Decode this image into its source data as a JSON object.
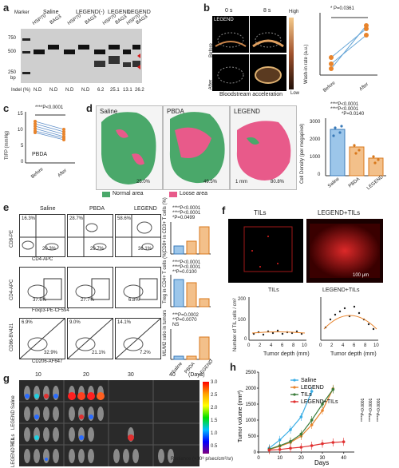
{
  "panels": {
    "a": "a",
    "b": "b",
    "c": "c",
    "d": "d",
    "e": "e",
    "f": "f",
    "g": "g",
    "h": "h"
  },
  "panel_a": {
    "groups": [
      "Saline",
      "LEGEND(-)",
      "LEGEND",
      "LEGEND"
    ],
    "marker_label": "Marker",
    "lane_labels": [
      "HSP70",
      "BAG3",
      "HSP70",
      "BAG3",
      "HSP70",
      "BAG3",
      "HSP70",
      "BAG3"
    ],
    "size_labels": [
      "750",
      "500",
      "250",
      "bp"
    ],
    "indel_label": "Indel (%)",
    "indel_values": [
      "N.D",
      "N.D",
      "N.D",
      "N.D",
      "6.2",
      "25.1",
      "13.1",
      "26.2"
    ]
  },
  "panel_b": {
    "time_0": "0 s",
    "time_8": "8 s",
    "legend_tag": "LEGEND",
    "row_before": "Before",
    "row_after": "After",
    "caption": "Bloodstream acceleration",
    "scale_high": "High",
    "scale_low": "Low",
    "ylabel": "Wash-in rate (a.u.)",
    "pval": "* P=0.0361",
    "xlabels": [
      "Before",
      "After"
    ]
  },
  "panel_c": {
    "ylabel": "TIFP (mmHg)",
    "pval": "****P<0.0001",
    "tag": "PBDA",
    "xlabels": [
      "Before",
      "After"
    ],
    "yticks": [
      "15",
      "10",
      "5",
      "0"
    ]
  },
  "panel_d": {
    "titles": [
      "Saline",
      "PBDA",
      "LEGEND"
    ],
    "percents": [
      "25.0%",
      "49.5%",
      "80.8%"
    ],
    "scalebar": "1 mm",
    "legend_normal": "Normal area",
    "legend_loose": "Loose area",
    "ylabel": "Cell Density (per megapixel)",
    "pvals": [
      "****P<0.0001",
      "****P<0.0001",
      "*P=0.0140"
    ],
    "xlabels": [
      "Saline",
      "PBDA",
      "LEGEND"
    ],
    "yticks": [
      "3000",
      "2000",
      "1000",
      "0"
    ]
  },
  "panel_e": {
    "cols": [
      "Saline",
      "PBDA",
      "LEGEND"
    ],
    "row1_tl": [
      "16.3%",
      "28.7%",
      "58.6%"
    ],
    "row1_br": [
      "20.3%",
      "29.7%",
      "36.1%"
    ],
    "row2_pct": [
      "37.6%",
      "27.7%",
      "6.8%"
    ],
    "row3_tl": [
      "6.9%",
      "9.0%",
      "14.1%"
    ],
    "row3_br": [
      "32.9%",
      "21.1%",
      "7.2%"
    ],
    "row1_axes": [
      "CD8-PE",
      "CD4-APC"
    ],
    "row2_axes": [
      "CD4-APC",
      "Foxp3-PE-CF594"
    ],
    "row3_axes": [
      "CD86-BV421",
      "CD206-AF647"
    ],
    "bar_ylabels": [
      "CD8+ in CD3+ T cells (%)",
      "Treg in CD4+ T cells (%)",
      "M1/M2 ratio in tumors"
    ],
    "row1_pvals": [
      "****P<0.0001",
      "****P<0.0001",
      "*P=0.0499"
    ],
    "row2_pvals": [
      "****P<0.0001",
      "****P<0.0001",
      "**P=0.0100"
    ],
    "row3_pvals": [
      "***P=0.0002",
      "**P=0.0070",
      "NS"
    ],
    "xlabels": [
      "Saline",
      "PBDA",
      "LEGEND"
    ]
  },
  "panel_f": {
    "titles": [
      "TILs",
      "LEGEND+TILs"
    ],
    "scalebar": "100 μm",
    "plot_titles": [
      "TILs",
      "LEGEND+TILs"
    ],
    "ylabel": "Number of TIL cells / cm²",
    "xlabel": "Tumor depth (mm)",
    "xticks": [
      "0",
      "2",
      "4",
      "6",
      "8",
      "10"
    ],
    "yticks": [
      "200",
      "100",
      "0"
    ]
  },
  "panel_g": {
    "days": [
      "10",
      "20",
      "30",
      "40"
    ],
    "days_label": "(Days)",
    "rows": [
      "Saline",
      "LEGEND",
      "TILs",
      "LEGEND +TILs"
    ],
    "colorbar_ticks": [
      "3.0",
      "2.5",
      "2.0",
      "1.5",
      "1.0",
      "0.5"
    ],
    "colorbar_label": "Radiance (×10⁸ p/sec/cm²/sr)"
  },
  "chart_data": {
    "type": "line",
    "title": "",
    "xlabel": "Days",
    "ylabel": "Tumor volume (mm³)",
    "xlim": [
      0,
      45
    ],
    "ylim": [
      0,
      2500
    ],
    "xticks": [
      0,
      10,
      20,
      30,
      40
    ],
    "yticks": [
      0,
      500,
      1000,
      1500,
      2000,
      2500
    ],
    "series": [
      {
        "name": "Saline",
        "color": "#3aaee6",
        "x": [
          5,
          10,
          15,
          20,
          25
        ],
        "y": [
          120,
          380,
          700,
          1100,
          1900
        ]
      },
      {
        "name": "LEGEND",
        "color": "#e8842c",
        "x": [
          5,
          10,
          15,
          20,
          25,
          30,
          35
        ],
        "y": [
          80,
          180,
          300,
          500,
          850,
          1300,
          1980
        ]
      },
      {
        "name": "TILs",
        "color": "#3c7d3c",
        "x": [
          5,
          10,
          15,
          20,
          25,
          30,
          35
        ],
        "y": [
          90,
          200,
          330,
          560,
          1000,
          1500,
          1960
        ]
      },
      {
        "name": "LEGEND+TILs",
        "color": "#e03030",
        "x": [
          5,
          10,
          15,
          20,
          25,
          30,
          35,
          40
        ],
        "y": [
          60,
          80,
          120,
          150,
          200,
          260,
          300,
          320
        ]
      }
    ],
    "pvals": [
      "****P<0.0001",
      "****P<0.0001",
      "****P<0.0001"
    ]
  }
}
